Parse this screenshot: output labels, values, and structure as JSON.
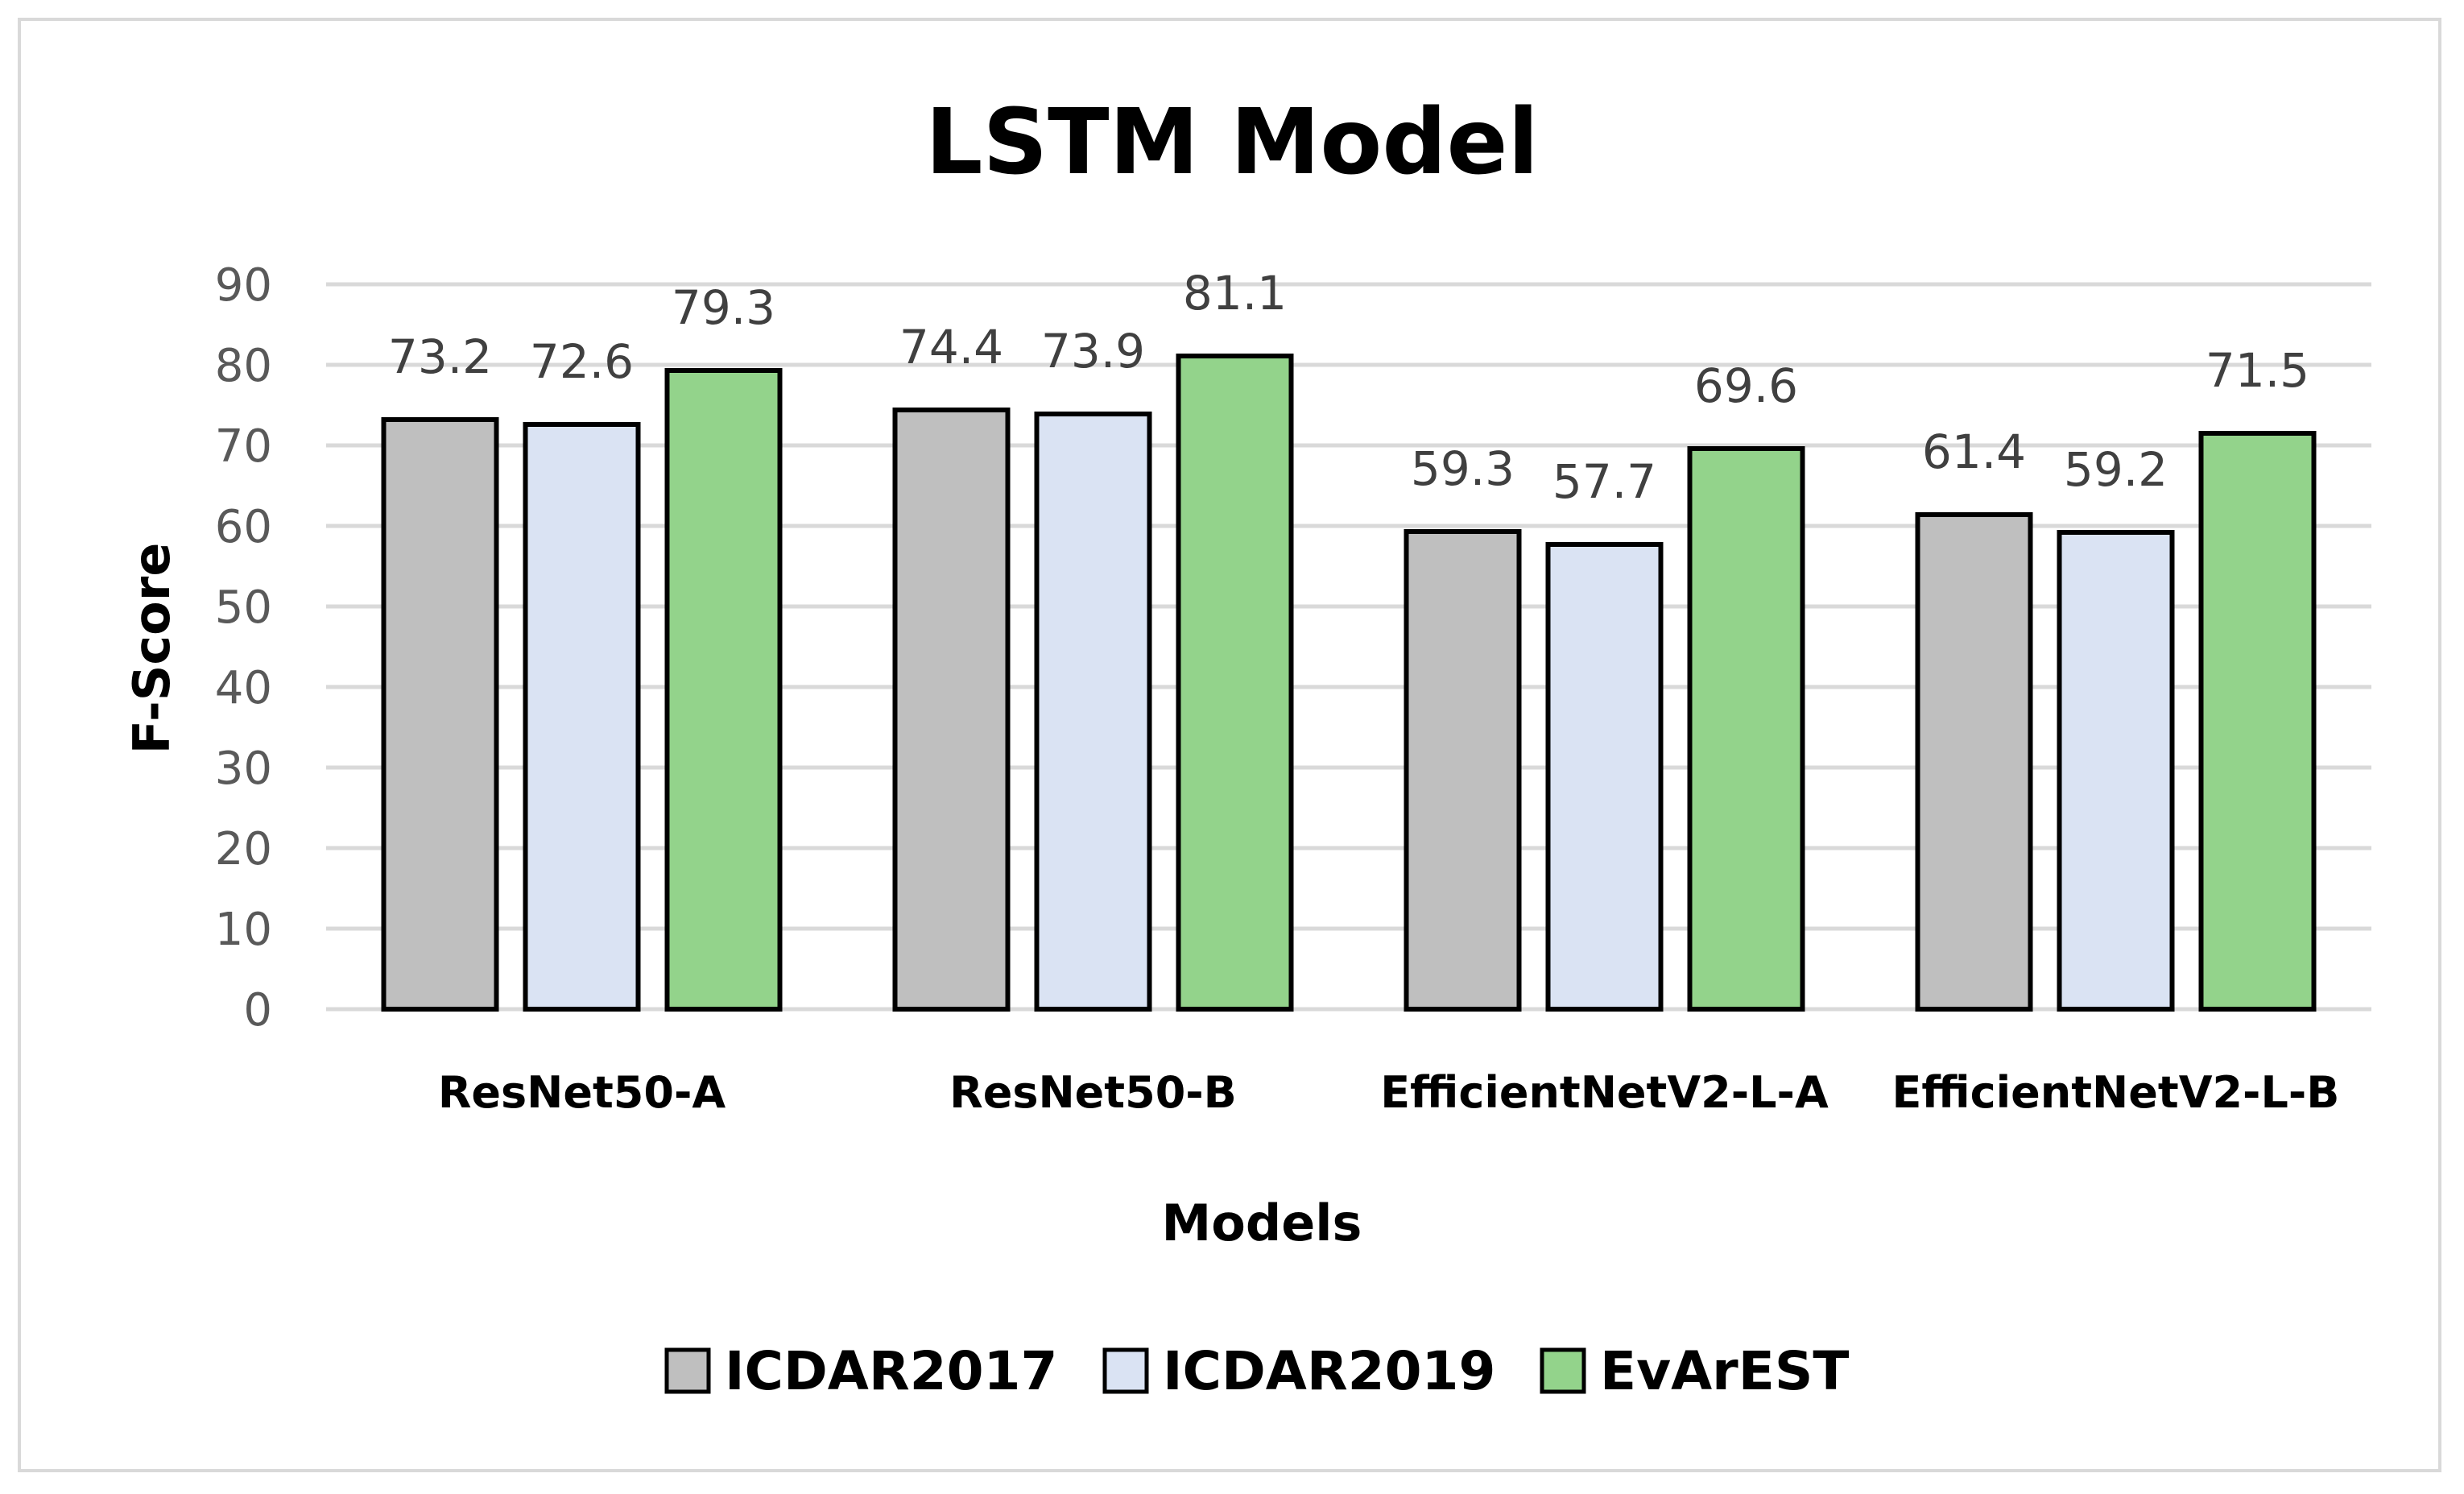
{
  "chart_data": {
    "type": "bar",
    "title": "LSTM Model",
    "xlabel": "Models",
    "ylabel": "F-Score",
    "ylim": [
      0,
      90
    ],
    "yticks": [
      "0",
      "10",
      "20",
      "30",
      "40",
      "50",
      "60",
      "70",
      "80",
      "90"
    ],
    "grid": true,
    "legend_position": "bottom",
    "categories": [
      "ResNet50-A",
      "ResNet50-B",
      "EfficientNetV2-L-A",
      "EfficientNetV2-L-B"
    ],
    "series": [
      {
        "name": "ICDAR2017",
        "color": "#bfbfbf",
        "values": [
          73.2,
          74.4,
          59.3,
          61.4
        ],
        "labels": [
          "73.2",
          "74.4",
          "59.3",
          "61.4"
        ]
      },
      {
        "name": "ICDAR2019",
        "color": "#dae3f3",
        "values": [
          72.6,
          73.9,
          57.7,
          59.2
        ],
        "labels": [
          "72.6",
          "73.9",
          "57.7",
          "59.2"
        ]
      },
      {
        "name": "EvArEST",
        "color": "#93d38b",
        "values": [
          79.3,
          81.1,
          69.6,
          71.5
        ],
        "labels": [
          "79.3",
          "81.1",
          "69.6",
          "71.5"
        ]
      }
    ],
    "colors": {
      "gridline": "#d9d9d9",
      "bar_outline": "#000000",
      "frame": "#d9d9d9"
    }
  }
}
